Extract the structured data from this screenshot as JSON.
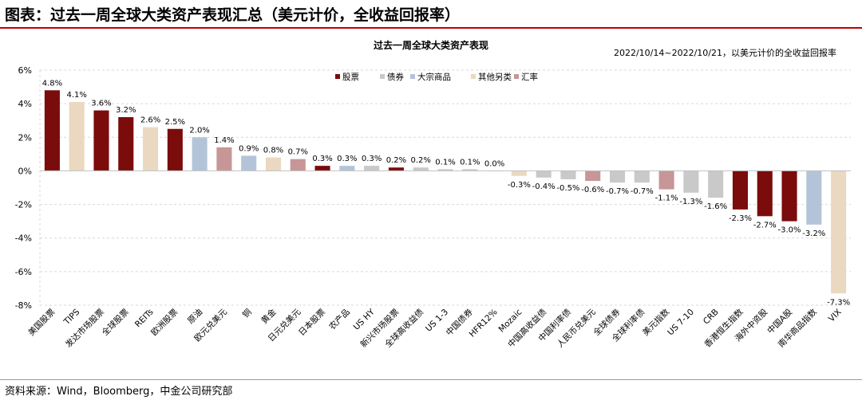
{
  "header": {
    "title": "图表：过去一周全球大类资产表现汇总（美元计价，全收益回报率）"
  },
  "footer": {
    "source": "资料来源：Wind，Bloomberg，中金公司研究部"
  },
  "chart_data": {
    "type": "bar",
    "title": "过去一周全球大类资产表现",
    "subtitle": "2022/10/14~2022/10/21，以美元计价的全收益回报率",
    "ylim": [
      -8,
      6
    ],
    "yticks": [
      -8,
      -6,
      -4,
      -2,
      0,
      2,
      4,
      6
    ],
    "ytick_labels": [
      "-8%",
      "-6%",
      "-4%",
      "-2%",
      "0%",
      "2%",
      "4%",
      "6%"
    ],
    "grid": "horizontal dashed",
    "legend_position": "top-center",
    "legend": [
      {
        "key": "stock",
        "name": "股票",
        "color": "#7b0c0c"
      },
      {
        "key": "bond",
        "name": "债券",
        "color": "#c9c9c9"
      },
      {
        "key": "commodity",
        "name": "大宗商品",
        "color": "#b4c4d8"
      },
      {
        "key": "other",
        "name": "其他另类",
        "color": "#ead9c0"
      },
      {
        "key": "fx",
        "name": "汇率",
        "color": "#c79696"
      }
    ],
    "categories": [
      "美国股票",
      "TIPS",
      "发达市场股票",
      "全球股票",
      "REITs",
      "欧洲股票",
      "原油",
      "欧元兑美元",
      "铜",
      "黄金",
      "日元兑美元",
      "日本股票",
      "农产品",
      "US HY",
      "新兴市场股票",
      "全球高收益债",
      "US 1-3",
      "中国债券",
      "HFR12%",
      "Mozaic",
      "中国高收益债",
      "中国利率债",
      "人民币兑美元",
      "全球债券",
      "全球利率债",
      "美元指数",
      "US 7-10",
      "CRB",
      "香港恒生指数",
      "海外中资股",
      "中国A股",
      "南华商品指数",
      "VIX"
    ],
    "values": [
      4.8,
      4.1,
      3.6,
      3.2,
      2.6,
      2.5,
      2.0,
      1.4,
      0.9,
      0.8,
      0.7,
      0.3,
      0.3,
      0.3,
      0.2,
      0.2,
      0.1,
      0.1,
      0.0,
      -0.3,
      -0.4,
      -0.5,
      -0.6,
      -0.7,
      -0.7,
      -1.1,
      -1.3,
      -1.6,
      -2.3,
      -2.7,
      -3.0,
      -3.2,
      -7.3
    ],
    "value_labels": [
      "4.8%",
      "4.1%",
      "3.6%",
      "3.2%",
      "2.6%",
      "2.5%",
      "2.0%",
      "1.4%",
      "0.9%",
      "0.8%",
      "0.7%",
      "0.3%",
      "0.3%",
      "0.3%",
      "0.2%",
      "0.2%",
      "0.1%",
      "0.1%",
      "0.0%",
      "-0.3%",
      "-0.4%",
      "-0.5%",
      "-0.6%",
      "-0.7%",
      "-0.7%",
      "-1.1%",
      "-1.3%",
      "-1.6%",
      "-2.3%",
      "-2.7%",
      "-3.0%",
      "-3.2%",
      "-7.3%"
    ],
    "classes": [
      "stock",
      "other",
      "stock",
      "stock",
      "other",
      "stock",
      "commodity",
      "fx",
      "commodity",
      "other",
      "fx",
      "stock",
      "commodity",
      "bond",
      "stock",
      "bond",
      "bond",
      "bond",
      "other",
      "other",
      "bond",
      "bond",
      "fx",
      "bond",
      "bond",
      "fx",
      "bond",
      "bond",
      "stock",
      "stock",
      "stock",
      "commodity",
      "other"
    ]
  }
}
